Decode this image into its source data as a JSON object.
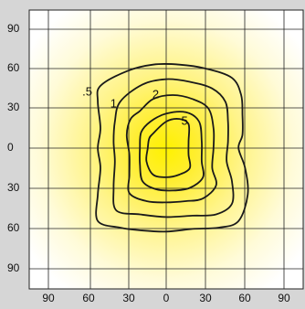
{
  "chart_data": {
    "type": "contour",
    "x_ticks": [
      "90",
      "60",
      "30",
      "0",
      "30",
      "60",
      "90"
    ],
    "y_ticks": [
      "90",
      "60",
      "30",
      "0",
      "30",
      "60",
      "90"
    ],
    "xlim": [
      -90,
      90
    ],
    "ylim": [
      -90,
      90
    ],
    "grid": true,
    "contour_levels": [
      {
        "label": ".5",
        "label_at": [
          -60,
          42
        ],
        "points": [
          [
            -50,
            47
          ],
          [
            -30,
            58
          ],
          [
            -10,
            63
          ],
          [
            10,
            63
          ],
          [
            30,
            60
          ],
          [
            50,
            53
          ],
          [
            57,
            40
          ],
          [
            58,
            25
          ],
          [
            58,
            10
          ],
          [
            55,
            0
          ],
          [
            60,
            -15
          ],
          [
            62,
            -35
          ],
          [
            55,
            -55
          ],
          [
            40,
            -60
          ],
          [
            20,
            -61
          ],
          [
            0,
            -63
          ],
          [
            -20,
            -62
          ],
          [
            -35,
            -60
          ],
          [
            -52,
            -55
          ],
          [
            -52,
            -35
          ],
          [
            -50,
            -15
          ],
          [
            -52,
            0
          ],
          [
            -50,
            15
          ],
          [
            -52,
            35
          ]
        ]
      },
      {
        "label": "1",
        "label_at": [
          -40,
          33
        ],
        "points": [
          [
            -35,
            35
          ],
          [
            -18,
            48
          ],
          [
            0,
            52
          ],
          [
            18,
            50
          ],
          [
            35,
            45
          ],
          [
            45,
            35
          ],
          [
            47,
            20
          ],
          [
            47,
            5
          ],
          [
            46,
            -10
          ],
          [
            50,
            -25
          ],
          [
            50,
            -42
          ],
          [
            38,
            -50
          ],
          [
            20,
            -51
          ],
          [
            0,
            -52
          ],
          [
            -20,
            -50
          ],
          [
            -38,
            -47
          ],
          [
            -40,
            -30
          ],
          [
            -39,
            -10
          ],
          [
            -40,
            5
          ],
          [
            -39,
            20
          ]
        ]
      },
      {
        "label": "2",
        "label_at": [
          -8,
          40
        ],
        "points": [
          [
            -20,
            28
          ],
          [
            -10,
            37
          ],
          [
            5,
            40
          ],
          [
            20,
            37
          ],
          [
            32,
            30
          ],
          [
            36,
            15
          ],
          [
            36,
            0
          ],
          [
            35,
            -15
          ],
          [
            38,
            -28
          ],
          [
            28,
            -38
          ],
          [
            15,
            -40
          ],
          [
            0,
            -41
          ],
          [
            -15,
            -40
          ],
          [
            -28,
            -34
          ],
          [
            -28,
            -20
          ],
          [
            -28,
            -5
          ],
          [
            -30,
            10
          ],
          [
            -27,
            22
          ]
        ]
      },
      {
        "label": "",
        "label_at": null,
        "points": [
          [
            -12,
            20
          ],
          [
            0,
            26
          ],
          [
            15,
            27
          ],
          [
            25,
            20
          ],
          [
            27,
            5
          ],
          [
            27,
            -10
          ],
          [
            28,
            -22
          ],
          [
            18,
            -30
          ],
          [
            5,
            -32
          ],
          [
            -8,
            -31
          ],
          [
            -18,
            -25
          ],
          [
            -20,
            -12
          ],
          [
            -20,
            0
          ],
          [
            -19,
            12
          ]
        ]
      },
      {
        "label": "5",
        "label_at": [
          14,
          20
        ],
        "points": [
          [
            -10,
            11
          ],
          [
            0,
            20
          ],
          [
            10,
            22
          ],
          [
            17,
            18
          ],
          [
            17,
            5
          ],
          [
            17,
            -5
          ],
          [
            18,
            -15
          ],
          [
            10,
            -20
          ],
          [
            0,
            -22
          ],
          [
            -10,
            -20
          ],
          [
            -15,
            -10
          ],
          [
            -14,
            0
          ],
          [
            -13,
            7
          ]
        ]
      }
    ]
  },
  "colors": {
    "background": "#d6d6d6",
    "plot_edge": "#ffffff",
    "plot_center": "#fff200",
    "grid": "#222222",
    "contour": "#1a1a1a"
  }
}
